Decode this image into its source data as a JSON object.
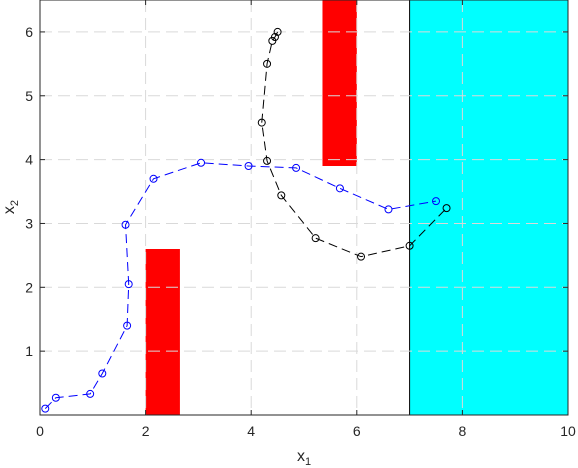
{
  "chart_data": {
    "type": "line",
    "xlabel": "x",
    "xlabel_sub": "1",
    "ylabel": "x",
    "ylabel_sub": "2",
    "xlim": [
      0,
      10
    ],
    "ylim": [
      0,
      6.5
    ],
    "xticks": [
      0,
      2,
      4,
      6,
      8,
      10
    ],
    "yticks": [
      1,
      2,
      3,
      4,
      5,
      6
    ],
    "xtick_labels": [
      "0",
      "2",
      "4",
      "6",
      "8",
      "10"
    ],
    "ytick_labels": [
      "1",
      "2",
      "3",
      "4",
      "5",
      "6"
    ],
    "grid": true,
    "regions": [
      {
        "x": [
          2.0,
          2.65
        ],
        "y": [
          0,
          2.6
        ],
        "color": "#ff0000"
      },
      {
        "x": [
          5.35,
          6.0
        ],
        "y": [
          3.9,
          6.5
        ],
        "color": "#ff0000"
      },
      {
        "x": [
          7.0,
          10.0
        ],
        "y": [
          0,
          6.5
        ],
        "color": "#00ffff"
      }
    ],
    "series": [
      {
        "color": "#0000ff",
        "style": "dashed",
        "marker": "circle",
        "points": [
          [
            0.1,
            0.1
          ],
          [
            0.3,
            0.27
          ],
          [
            0.95,
            0.33
          ],
          [
            1.18,
            0.65
          ],
          [
            1.65,
            1.4
          ],
          [
            1.68,
            2.05
          ],
          [
            1.62,
            2.98
          ],
          [
            2.15,
            3.7
          ],
          [
            3.05,
            3.95
          ],
          [
            3.95,
            3.9
          ],
          [
            4.85,
            3.87
          ],
          [
            5.68,
            3.55
          ],
          [
            6.6,
            3.22
          ],
          [
            7.5,
            3.35
          ]
        ]
      },
      {
        "color": "#000000",
        "style": "dashed",
        "marker": "circle",
        "points": [
          [
            4.5,
            6.0
          ],
          [
            4.45,
            5.92
          ],
          [
            4.4,
            5.86
          ],
          [
            4.3,
            5.5
          ],
          [
            4.2,
            4.58
          ],
          [
            4.3,
            3.98
          ],
          [
            4.57,
            3.44
          ],
          [
            5.22,
            2.77
          ],
          [
            6.08,
            2.48
          ],
          [
            7.0,
            2.65
          ],
          [
            7.7,
            3.24
          ]
        ]
      }
    ]
  }
}
